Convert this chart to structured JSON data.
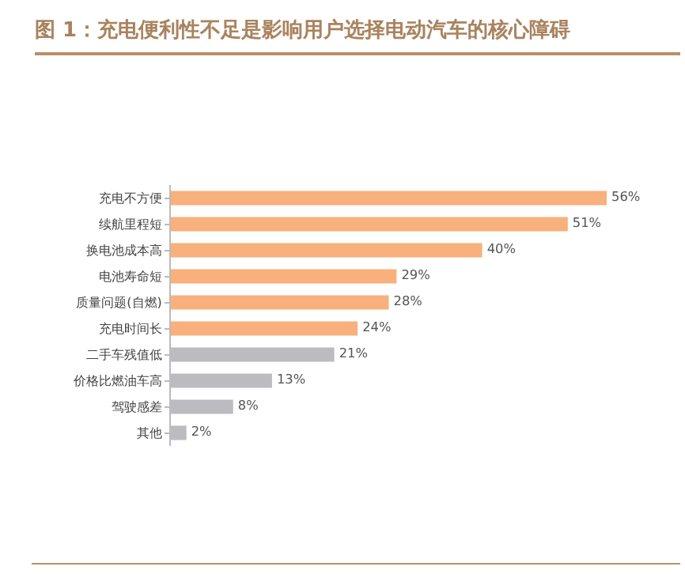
{
  "chart_data": {
    "type": "bar",
    "orientation": "horizontal",
    "title": "图 1：充电便利性不足是影响用户选择电动汽车的核心障碍",
    "categories": [
      "充电不方便",
      "续航里程短",
      "换电池成本高",
      "电池寿命短",
      "质量问题(自燃)",
      "充电时间长",
      "二手车残值低",
      "价格比燃油车高",
      "驾驶感差",
      "其他"
    ],
    "values": [
      56,
      51,
      40,
      29,
      28,
      24,
      21,
      13,
      8,
      2
    ],
    "colors": [
      "#f8b07c",
      "#f8b07c",
      "#f8b07c",
      "#f8b07c",
      "#f8b07c",
      "#f8b07c",
      "#bcbcc0",
      "#bcbcc0",
      "#bcbcc0",
      "#bcbcc0"
    ],
    "value_labels": [
      "56%",
      "51%",
      "40%",
      "29%",
      "28%",
      "24%",
      "21%",
      "13%",
      "8%",
      "2%"
    ],
    "tick_labels": "y"
  }
}
